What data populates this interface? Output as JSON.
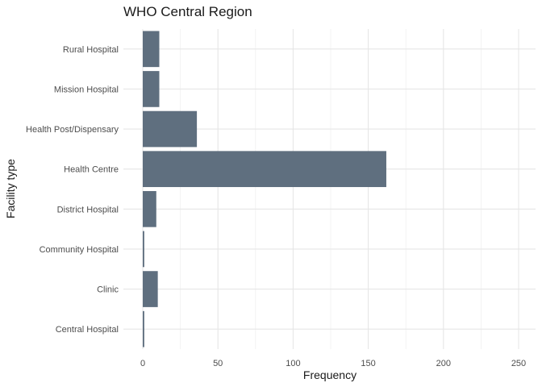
{
  "chart_data": {
    "type": "bar",
    "orientation": "horizontal",
    "title": "WHO Central Region",
    "xlabel": "Frequency",
    "ylabel": "Facility type",
    "categories": [
      "Rural Hospital",
      "Mission Hospital",
      "Health Post/Dispensary",
      "Health Centre",
      "District Hospital",
      "Community Hospital",
      "Clinic",
      "Central Hospital"
    ],
    "values": [
      11,
      11,
      36,
      162,
      9,
      1,
      10,
      1
    ],
    "xlim": [
      0,
      262
    ],
    "xticks": [
      "0",
      "50",
      "100",
      "150",
      "200",
      "250"
    ],
    "grid": true,
    "legend": "none",
    "bar_color": "#5f6f7f"
  }
}
